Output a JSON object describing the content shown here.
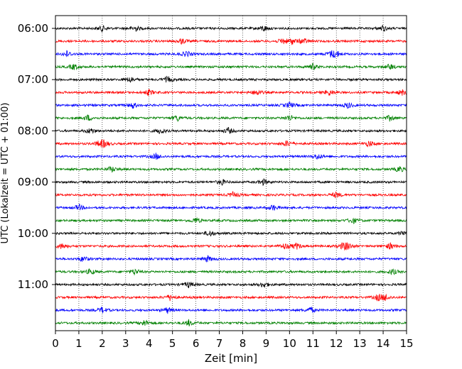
{
  "chart_data": {
    "type": "line",
    "subtype": "helicorder",
    "xlabel": "Zeit  [min]",
    "ylabel": "UTC (Lokalzeit = UTC + 01:00)",
    "xlim": [
      0,
      15
    ],
    "x_ticks": [
      "0",
      "1",
      "2",
      "3",
      "4",
      "5",
      "6",
      "7",
      "8",
      "9",
      "10",
      "11",
      "12",
      "13",
      "14",
      "15"
    ],
    "y_ticks": [
      {
        "label": "06:00",
        "row": 0
      },
      {
        "label": "07:00",
        "row": 4
      },
      {
        "label": "08:00",
        "row": 8
      },
      {
        "label": "09:00",
        "row": 12
      },
      {
        "label": "10:00",
        "row": 16
      },
      {
        "label": "11:00",
        "row": 20
      }
    ],
    "grid": "vertical dotted",
    "row_minutes": 15,
    "rows_count": 24,
    "row_colors": [
      "#000000",
      "#ff0000",
      "#0000ff",
      "#008000"
    ],
    "events": [
      {
        "row": 0,
        "t": [
          2.0,
          3.4,
          8.9,
          14.0
        ]
      },
      {
        "row": 1,
        "t": [
          5.4,
          9.7,
          10.1,
          10.6
        ]
      },
      {
        "row": 2,
        "t": [
          0.5,
          5.6,
          11.8,
          12.0
        ]
      },
      {
        "row": 3,
        "t": [
          0.8,
          11.0,
          14.3
        ]
      },
      {
        "row": 4,
        "t": [
          3.2,
          4.8
        ]
      },
      {
        "row": 5,
        "t": [
          4.0,
          8.6,
          11.7,
          14.8
        ]
      },
      {
        "row": 6,
        "t": [
          3.3,
          10.0,
          12.5
        ]
      },
      {
        "row": 7,
        "t": [
          1.4,
          5.2,
          10.0,
          14.3
        ]
      },
      {
        "row": 8,
        "t": [
          1.5,
          4.5,
          7.4
        ]
      },
      {
        "row": 9,
        "t": [
          1.9,
          2.1,
          9.9,
          13.4
        ]
      },
      {
        "row": 10,
        "t": [
          4.3,
          11.2
        ]
      },
      {
        "row": 11,
        "t": [
          2.4,
          14.7
        ]
      },
      {
        "row": 12,
        "t": [
          7.1,
          8.9
        ]
      },
      {
        "row": 13,
        "t": [
          7.6,
          12.0
        ]
      },
      {
        "row": 14,
        "t": [
          1.0,
          9.3
        ]
      },
      {
        "row": 15,
        "t": [
          6.0,
          12.7
        ]
      },
      {
        "row": 16,
        "t": [
          6.6,
          14.9
        ]
      },
      {
        "row": 17,
        "t": [
          0.3,
          9.8,
          10.3,
          12.3,
          12.5,
          14.3
        ]
      },
      {
        "row": 18,
        "t": [
          1.2,
          6.5
        ]
      },
      {
        "row": 19,
        "t": [
          1.5,
          3.4,
          14.4
        ]
      },
      {
        "row": 20,
        "t": [
          5.7,
          8.9
        ]
      },
      {
        "row": 21,
        "t": [
          4.9,
          13.8,
          14.1
        ]
      },
      {
        "row": 22,
        "t": [
          2.0,
          4.8,
          10.9
        ]
      },
      {
        "row": 23,
        "t": [
          3.8,
          5.7
        ]
      }
    ]
  }
}
